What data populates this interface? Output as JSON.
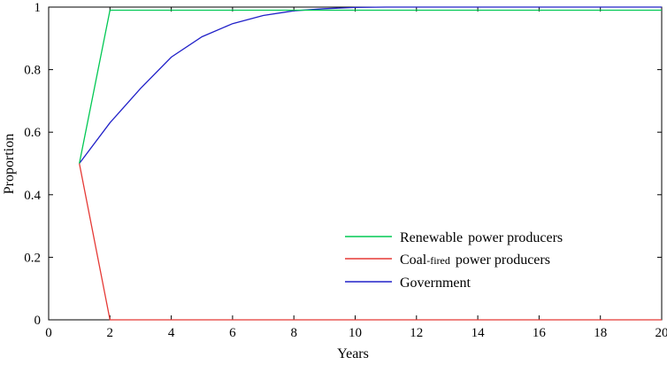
{
  "chart_data": {
    "type": "line",
    "title": "",
    "xlabel": "Years",
    "ylabel": "Proportion",
    "xlim": [
      0,
      20
    ],
    "ylim": [
      0,
      1
    ],
    "x_ticks": [
      0,
      2,
      4,
      6,
      8,
      10,
      12,
      14,
      16,
      18,
      20
    ],
    "y_ticks": [
      0,
      0.2,
      0.4,
      0.6,
      0.8,
      1
    ],
    "grid": false,
    "legend_position": "lower-right",
    "series": [
      {
        "name": "Renewable power producers",
        "legend_parts": [
          "Renewable",
          "power producers"
        ],
        "color": "#00c853",
        "x": [
          1,
          2,
          3,
          4,
          5,
          6,
          7,
          8,
          9,
          10,
          11,
          12,
          13,
          14,
          15,
          16,
          17,
          18,
          19,
          20
        ],
        "values": [
          0.5,
          0.99,
          0.99,
          0.99,
          0.99,
          0.99,
          0.99,
          0.99,
          0.99,
          0.99,
          0.99,
          0.99,
          0.99,
          0.99,
          0.99,
          0.99,
          0.99,
          0.99,
          0.99,
          0.99
        ]
      },
      {
        "name": "Coal-fired power producers",
        "legend_parts": [
          "Coal",
          "-fired",
          "power producers"
        ],
        "color": "#e53935",
        "x": [
          1,
          2,
          3,
          4,
          5,
          6,
          7,
          8,
          9,
          10,
          11,
          12,
          13,
          14,
          15,
          16,
          17,
          18,
          19,
          20
        ],
        "values": [
          0.5,
          0,
          0,
          0,
          0,
          0,
          0,
          0,
          0,
          0,
          0,
          0,
          0,
          0,
          0,
          0,
          0,
          0,
          0,
          0
        ]
      },
      {
        "name": "Government",
        "legend_parts": [
          "Government"
        ],
        "color": "#2020c8",
        "x": [
          1,
          2,
          3,
          4,
          5,
          6,
          7,
          8,
          9,
          10,
          11,
          12,
          13,
          14,
          15,
          16,
          17,
          18,
          19,
          20
        ],
        "values": [
          0.5,
          0.63,
          0.74,
          0.84,
          0.905,
          0.947,
          0.973,
          0.988,
          0.995,
          0.999,
          1,
          1,
          1,
          1,
          1,
          1,
          1,
          1,
          1,
          1
        ]
      }
    ]
  }
}
